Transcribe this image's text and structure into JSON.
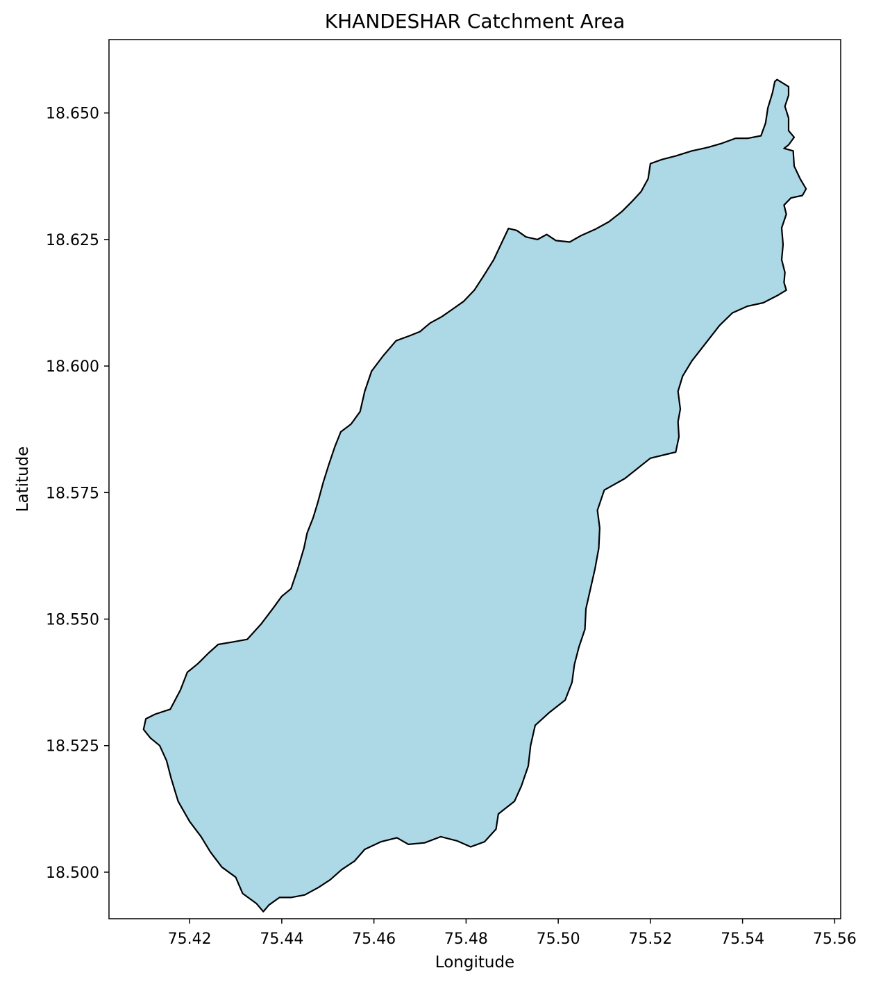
{
  "map": {
    "title": "KHANDESHAR Catchment Area",
    "xlabel": "Longitude",
    "ylabel": "Latitude",
    "fill_color": "#add8e6",
    "edge_color": "#000000",
    "xlim": [
      75.4025,
      75.5613
    ],
    "ylim": [
      18.4908,
      18.6645
    ],
    "x_ticks": [
      {
        "value": 75.42,
        "label": "75.42"
      },
      {
        "value": 75.44,
        "label": "75.44"
      },
      {
        "value": 75.46,
        "label": "75.46"
      },
      {
        "value": 75.48,
        "label": "75.48"
      },
      {
        "value": 75.5,
        "label": "75.50"
      },
      {
        "value": 75.52,
        "label": "75.52"
      },
      {
        "value": 75.54,
        "label": "75.54"
      },
      {
        "value": 75.56,
        "label": "75.56"
      }
    ],
    "y_ticks": [
      {
        "value": 18.5,
        "label": "18.500"
      },
      {
        "value": 18.525,
        "label": "18.525"
      },
      {
        "value": 18.55,
        "label": "18.550"
      },
      {
        "value": 18.575,
        "label": "18.575"
      },
      {
        "value": 18.6,
        "label": "18.600"
      },
      {
        "value": 18.625,
        "label": "18.625"
      },
      {
        "value": 18.65,
        "label": "18.650"
      }
    ],
    "boundary": [
      [
        75.5475,
        18.6566
      ],
      [
        75.55,
        18.6552
      ],
      [
        75.55,
        18.6535
      ],
      [
        75.5492,
        18.6513
      ],
      [
        75.55,
        18.649
      ],
      [
        75.55,
        18.6465
      ],
      [
        75.5512,
        18.6452
      ],
      [
        75.55,
        18.6437
      ],
      [
        75.549,
        18.643
      ],
      [
        75.551,
        18.6425
      ],
      [
        75.5512,
        18.6395
      ],
      [
        75.5525,
        18.637
      ],
      [
        75.5538,
        18.635
      ],
      [
        75.553,
        18.6337
      ],
      [
        75.5505,
        18.6332
      ],
      [
        75.549,
        18.6318
      ],
      [
        75.5495,
        18.63
      ],
      [
        75.5485,
        18.6273
      ],
      [
        75.5488,
        18.624
      ],
      [
        75.5485,
        18.621
      ],
      [
        75.5492,
        18.6185
      ],
      [
        75.549,
        18.6165
      ],
      [
        75.5495,
        18.615
      ],
      [
        75.5477,
        18.614
      ],
      [
        75.5445,
        18.6125
      ],
      [
        75.541,
        18.6118
      ],
      [
        75.5378,
        18.6105
      ],
      [
        75.535,
        18.608
      ],
      [
        75.532,
        18.6045
      ],
      [
        75.529,
        18.601
      ],
      [
        75.527,
        18.598
      ],
      [
        75.526,
        18.595
      ],
      [
        75.5265,
        18.5915
      ],
      [
        75.526,
        18.589
      ],
      [
        75.5262,
        18.586
      ],
      [
        75.5255,
        18.583
      ],
      [
        75.52,
        18.5818
      ],
      [
        75.5145,
        18.5778
      ],
      [
        75.51,
        18.5755
      ],
      [
        75.5085,
        18.5715
      ],
      [
        75.509,
        18.568
      ],
      [
        75.5088,
        18.564
      ],
      [
        75.508,
        18.56
      ],
      [
        75.507,
        18.556
      ],
      [
        75.506,
        18.552
      ],
      [
        75.5058,
        18.548
      ],
      [
        75.5045,
        18.5445
      ],
      [
        75.5035,
        18.541
      ],
      [
        75.503,
        18.5375
      ],
      [
        75.5015,
        18.534
      ],
      [
        75.498,
        18.5315
      ],
      [
        75.495,
        18.529
      ],
      [
        75.494,
        18.525
      ],
      [
        75.4935,
        18.521
      ],
      [
        75.492,
        18.517
      ],
      [
        75.4905,
        18.514
      ],
      [
        75.487,
        18.5115
      ],
      [
        75.4865,
        18.5085
      ],
      [
        75.484,
        18.506
      ],
      [
        75.481,
        18.505
      ],
      [
        75.478,
        18.5062
      ],
      [
        75.4745,
        18.507
      ],
      [
        75.471,
        18.5058
      ],
      [
        75.4675,
        18.5055
      ],
      [
        75.465,
        18.5068
      ],
      [
        75.4615,
        18.506
      ],
      [
        75.458,
        18.5045
      ],
      [
        75.4558,
        18.5022
      ],
      [
        75.453,
        18.5005
      ],
      [
        75.4505,
        18.4985
      ],
      [
        75.448,
        18.497
      ],
      [
        75.445,
        18.4955
      ],
      [
        75.442,
        18.495
      ],
      [
        75.4395,
        18.495
      ],
      [
        75.4372,
        18.4935
      ],
      [
        75.436,
        18.4922
      ],
      [
        75.4345,
        18.4938
      ],
      [
        75.4315,
        18.4958
      ],
      [
        75.43,
        18.499
      ],
      [
        75.427,
        18.501
      ],
      [
        75.4245,
        18.504
      ],
      [
        75.4225,
        18.507
      ],
      [
        75.42,
        18.51
      ],
      [
        75.4175,
        18.514
      ],
      [
        75.416,
        18.5185
      ],
      [
        75.415,
        18.522
      ],
      [
        75.4135,
        18.525
      ],
      [
        75.4115,
        18.5265
      ],
      [
        75.41,
        18.5282
      ],
      [
        75.4105,
        18.5303
      ],
      [
        75.4125,
        18.5312
      ],
      [
        75.4158,
        18.5322
      ],
      [
        75.418,
        18.536
      ],
      [
        75.4195,
        18.5395
      ],
      [
        75.4218,
        18.5412
      ],
      [
        75.424,
        18.5432
      ],
      [
        75.4262,
        18.545
      ],
      [
        75.4295,
        18.5455
      ],
      [
        75.4325,
        18.546
      ],
      [
        75.4355,
        18.549
      ],
      [
        75.438,
        18.552
      ],
      [
        75.44,
        18.5545
      ],
      [
        75.442,
        18.556
      ],
      [
        75.4435,
        18.56
      ],
      [
        75.4448,
        18.564
      ],
      [
        75.4455,
        18.567
      ],
      [
        75.4468,
        18.57
      ],
      [
        75.4478,
        18.573
      ],
      [
        75.449,
        18.577
      ],
      [
        75.4502,
        18.5805
      ],
      [
        75.4515,
        18.584
      ],
      [
        75.4528,
        18.587
      ],
      [
        75.455,
        18.5885
      ],
      [
        75.457,
        18.591
      ],
      [
        75.458,
        18.595
      ],
      [
        75.4595,
        18.599
      ],
      [
        75.462,
        18.602
      ],
      [
        75.4648,
        18.605
      ],
      [
        75.4678,
        18.606
      ],
      [
        75.47,
        18.6068
      ],
      [
        75.4722,
        18.6085
      ],
      [
        75.4748,
        18.6098
      ],
      [
        75.477,
        18.6112
      ],
      [
        75.4795,
        18.6128
      ],
      [
        75.4818,
        18.615
      ],
      [
        75.4838,
        18.6178
      ],
      [
        75.486,
        18.621
      ],
      [
        75.4878,
        18.6245
      ],
      [
        75.4892,
        18.6272
      ],
      [
        75.491,
        18.6268
      ],
      [
        75.493,
        18.6255
      ],
      [
        75.4955,
        18.625
      ],
      [
        75.4975,
        18.626
      ],
      [
        75.4995,
        18.6248
      ],
      [
        75.5025,
        18.6245
      ],
      [
        75.505,
        18.6258
      ],
      [
        75.508,
        18.627
      ],
      [
        75.511,
        18.6285
      ],
      [
        75.5138,
        18.6305
      ],
      [
        75.516,
        18.6325
      ],
      [
        75.518,
        18.6345
      ],
      [
        75.5195,
        18.637
      ],
      [
        75.52,
        18.64
      ],
      [
        75.5225,
        18.6408
      ],
      [
        75.5255,
        18.6415
      ],
      [
        75.529,
        18.6425
      ],
      [
        75.5325,
        18.6432
      ],
      [
        75.5355,
        18.644
      ],
      [
        75.5385,
        18.645
      ],
      [
        75.5412,
        18.645
      ],
      [
        75.544,
        18.6455
      ],
      [
        75.545,
        18.648
      ],
      [
        75.5455,
        18.651
      ],
      [
        75.5465,
        18.654
      ],
      [
        75.547,
        18.6562
      ]
    ]
  }
}
